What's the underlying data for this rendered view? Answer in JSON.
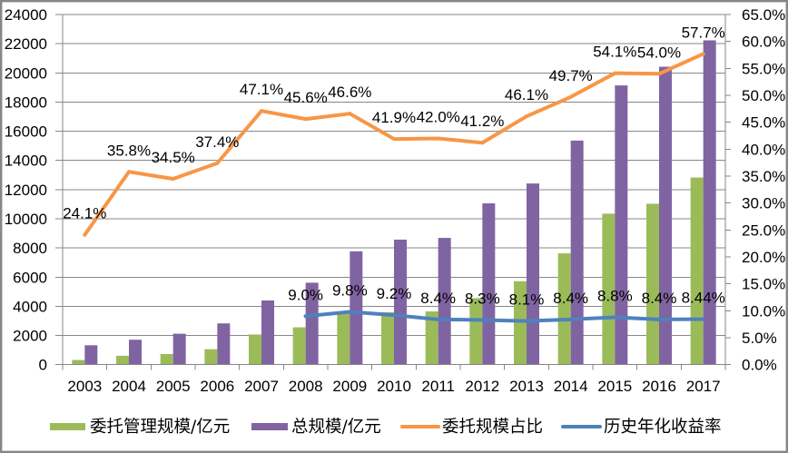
{
  "chart_data": {
    "type": "bar",
    "title": "",
    "xlabel": "",
    "categories": [
      "2003",
      "2004",
      "2005",
      "2006",
      "2007",
      "2008",
      "2009",
      "2010",
      "2011",
      "2012",
      "2013",
      "2014",
      "2015",
      "2016",
      "2017"
    ],
    "series": [
      {
        "name": "委托管理规模/亿元",
        "type": "bar",
        "axis": "left",
        "color": "#9BBB59",
        "values": [
          320,
          610,
          730,
          1060,
          2070,
          2560,
          3620,
          3590,
          3650,
          4560,
          5720,
          7630,
          10350,
          11030,
          12830
        ]
      },
      {
        "name": "总规模/亿元",
        "type": "bar",
        "axis": "left",
        "color": "#8064A2",
        "values": [
          1330,
          1710,
          2120,
          2830,
          4400,
          5620,
          7770,
          8570,
          8690,
          11060,
          12420,
          15360,
          19140,
          20420,
          22230
        ]
      },
      {
        "name": "委托规模占比",
        "type": "line",
        "axis": "right",
        "unit": "%",
        "color": "#F79646",
        "values": [
          24.1,
          35.8,
          34.5,
          37.4,
          47.1,
          45.6,
          46.6,
          41.9,
          42.0,
          41.2,
          46.1,
          49.7,
          54.1,
          54.0,
          57.7
        ],
        "labels": [
          "24.1%",
          "35.8%",
          "34.5%",
          "37.4%",
          "47.1%",
          "45.6%",
          "46.6%",
          "41.9%",
          "42.0%",
          "41.2%",
          "46.1%",
          "49.7%",
          "54.1%",
          "54.0%",
          "57.7%"
        ]
      },
      {
        "name": "历史年化收益率",
        "type": "line",
        "axis": "right",
        "unit": "%",
        "color": "#4F81BD",
        "values": [
          null,
          null,
          null,
          null,
          null,
          9.0,
          9.8,
          9.2,
          8.4,
          8.3,
          8.1,
          8.4,
          8.8,
          8.4,
          8.44
        ],
        "labels": [
          null,
          null,
          null,
          null,
          null,
          "9.0%",
          "9.8%",
          "9.2%",
          "8.4%",
          "8.3%",
          "8.1%",
          "8.4%",
          "8.8%",
          "8.4%",
          "8.44%"
        ]
      }
    ],
    "y_left": {
      "label": "",
      "min": 0,
      "max": 24000,
      "step": 2000,
      "tick_labels": [
        "0",
        "2000",
        "4000",
        "6000",
        "8000",
        "10000",
        "12000",
        "14000",
        "16000",
        "18000",
        "20000",
        "22000",
        "24000"
      ]
    },
    "y_right": {
      "label": "",
      "min": 0,
      "max": 65,
      "step": 5,
      "unit": "%",
      "tick_labels": [
        "0.0%",
        "5.0%",
        "10.0%",
        "15.0%",
        "20.0%",
        "25.0%",
        "30.0%",
        "35.0%",
        "40.0%",
        "45.0%",
        "50.0%",
        "55.0%",
        "60.0%",
        "65.0%"
      ]
    },
    "grid": true,
    "gridlines_follow": "left-axis",
    "legend": {
      "position": "bottom",
      "entries": [
        "委托管理规模/亿元",
        "总规模/亿元",
        "委托规模占比",
        "历史年化收益率"
      ]
    },
    "colors": {
      "gridline": "#878787",
      "frame": "#868686",
      "text": "#000000"
    }
  }
}
